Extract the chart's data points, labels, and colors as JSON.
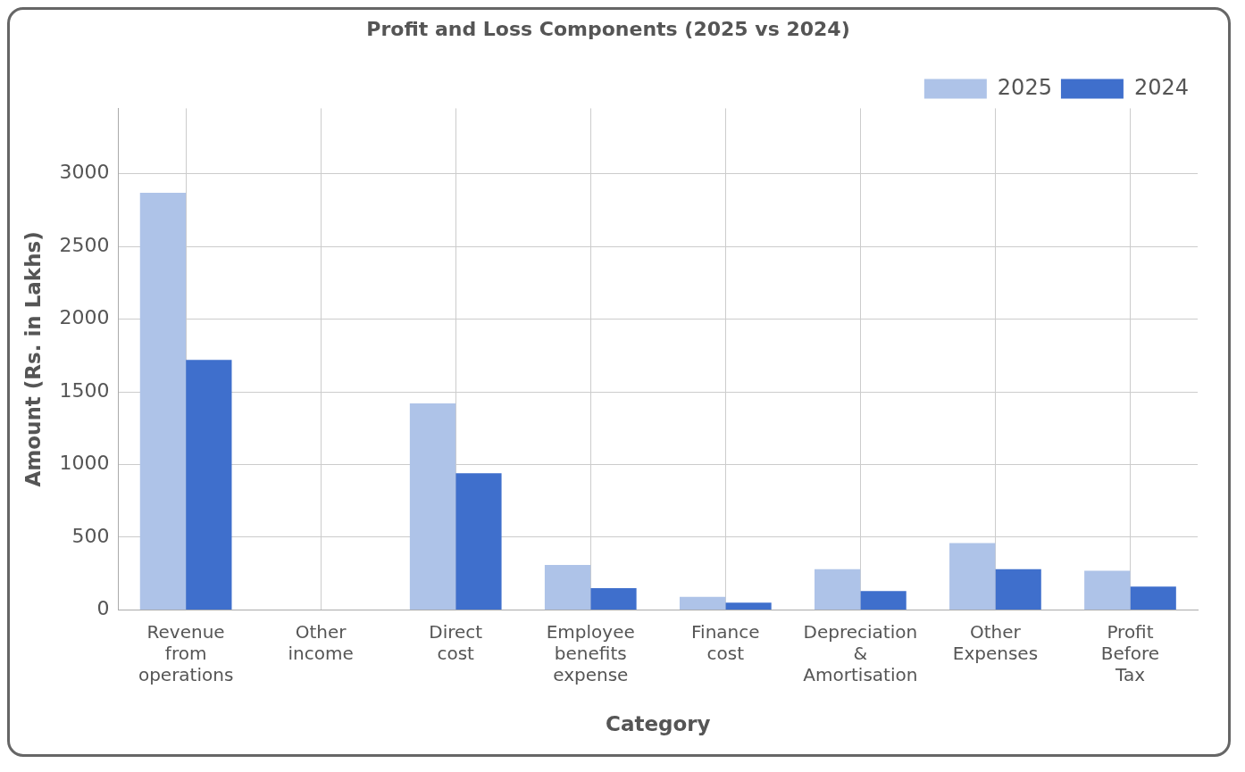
{
  "chart_data": {
    "type": "bar",
    "title": "Profit and Loss Components (2025 vs 2024)",
    "xlabel": "Category",
    "ylabel": "Amount (Rs. in Lakhs)",
    "categories": [
      "Revenue from operations",
      "Other income",
      "Direct cost",
      "Employee benefits expense",
      "Finance cost",
      "Depreciation & Amortisation",
      "Other Expenses",
      "Profit Before Tax"
    ],
    "series": [
      {
        "name": "2025",
        "color": "#aec3e8",
        "values": [
          2870,
          0,
          1420,
          310,
          90,
          280,
          460,
          270
        ]
      },
      {
        "name": "2024",
        "color": "#3f6fcc",
        "values": [
          1720,
          0,
          940,
          150,
          50,
          130,
          280,
          160
        ]
      }
    ],
    "ylim": [
      0,
      3450
    ],
    "yticks": [
      0,
      500,
      1000,
      1500,
      2000,
      2500,
      3000
    ],
    "grid": true,
    "legend": "top right"
  }
}
